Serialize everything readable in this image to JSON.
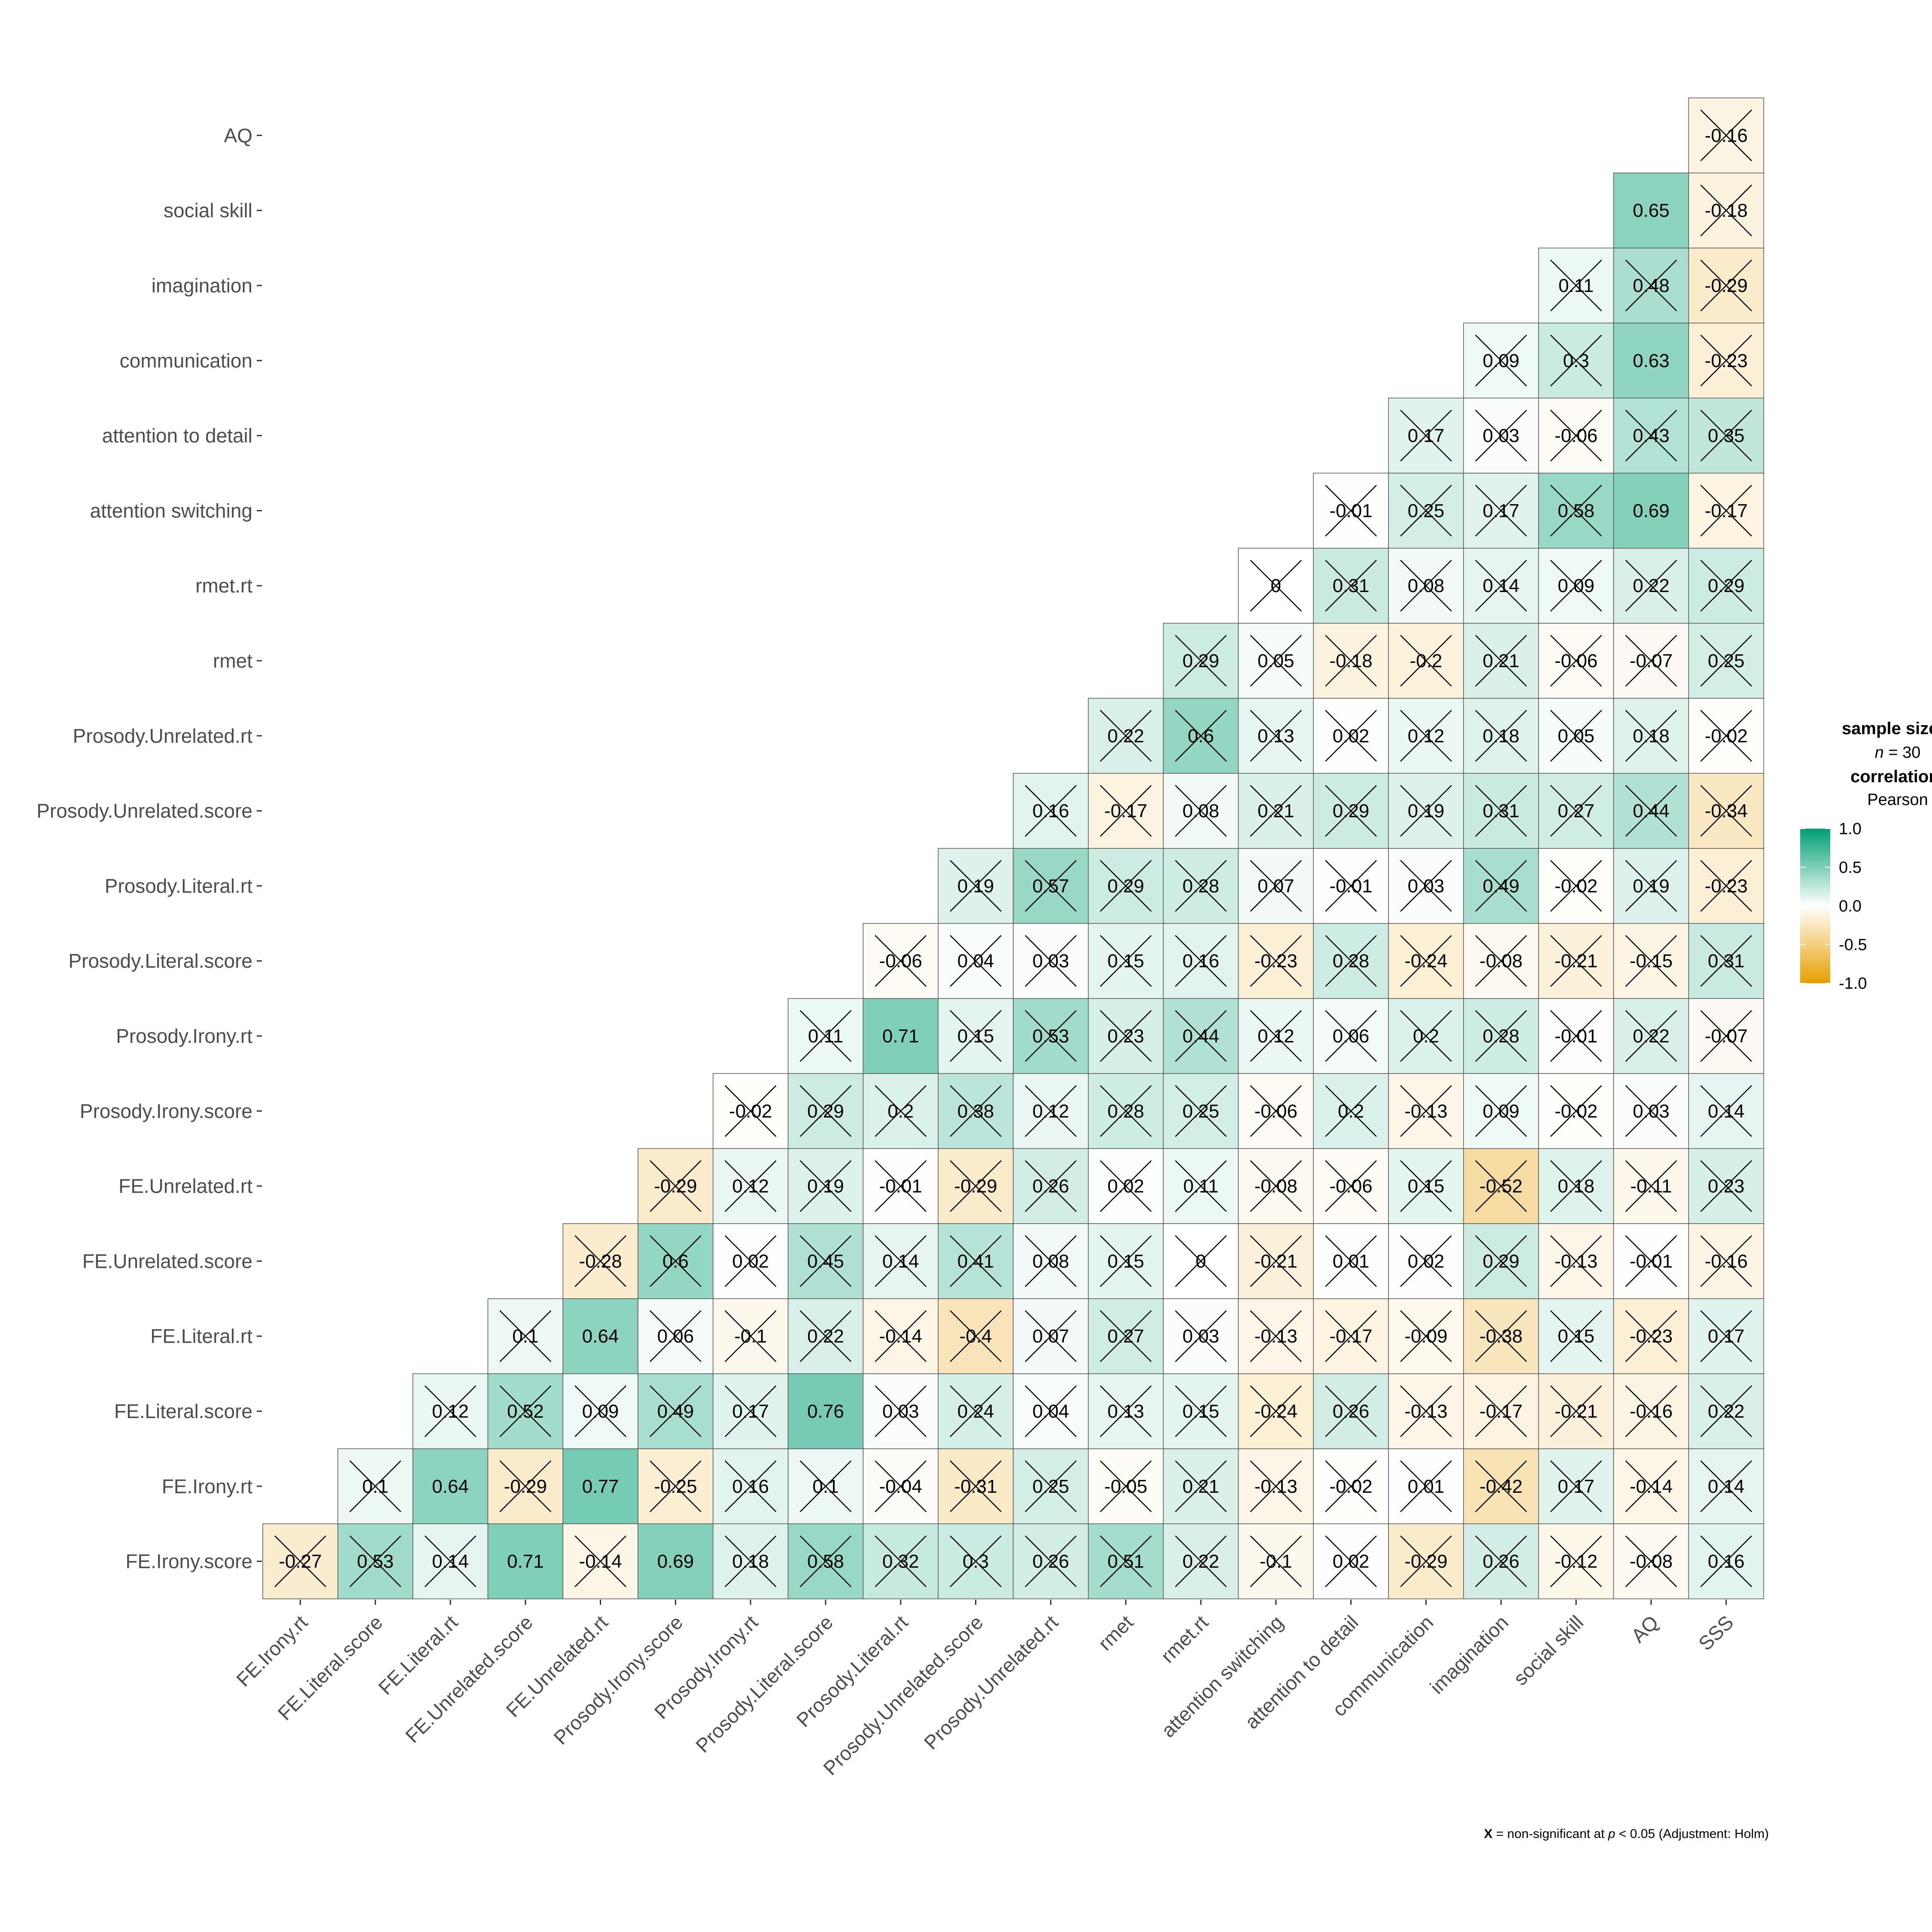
{
  "chart_data": {
    "type": "heatmap",
    "subtype": "correlation-matrix-lower-triangle",
    "variables": [
      "FE.Irony.score",
      "FE.Irony.rt",
      "FE.Literal.score",
      "FE.Literal.rt",
      "FE.Unrelated.score",
      "FE.Unrelated.rt",
      "Prosody.Irony.score",
      "Prosody.Irony.rt",
      "Prosody.Literal.score",
      "Prosody.Literal.rt",
      "Prosody.Unrelated.score",
      "Prosody.Unrelated.rt",
      "rmet",
      "rmet.rt",
      "attention switching",
      "attention to detail",
      "communication",
      "imagination",
      "social skill",
      "AQ",
      "SSS"
    ],
    "y_labels": [
      "FE.Irony.score",
      "FE.Irony.rt",
      "FE.Literal.score",
      "FE.Literal.rt",
      "FE.Unrelated.score",
      "FE.Unrelated.rt",
      "Prosody.Irony.score",
      "Prosody.Irony.rt",
      "Prosody.Literal.score",
      "Prosody.Literal.rt",
      "Prosody.Unrelated.score",
      "Prosody.Unrelated.rt",
      "rmet",
      "rmet.rt",
      "attention switching",
      "attention to detail",
      "communication",
      "imagination",
      "social skill",
      "AQ"
    ],
    "x_labels": [
      "FE.Irony.rt",
      "FE.Literal.score",
      "FE.Literal.rt",
      "FE.Unrelated.score",
      "FE.Unrelated.rt",
      "Prosody.Irony.score",
      "Prosody.Irony.rt",
      "Prosody.Literal.score",
      "Prosody.Literal.rt",
      "Prosody.Unrelated.score",
      "Prosody.Unrelated.rt",
      "rmet",
      "rmet.rt",
      "attention switching",
      "attention to detail",
      "communication",
      "imagination",
      "social skill",
      "AQ",
      "SSS"
    ],
    "correlations": [
      [
        -0.27,
        0.53,
        0.14,
        0.71,
        -0.14,
        0.69,
        0.18,
        0.58,
        0.32,
        0.3,
        0.26,
        0.51,
        0.22,
        -0.1,
        0.02,
        -0.29,
        0.26,
        -0.12,
        -0.08,
        0.16
      ],
      [
        0.1,
        0.64,
        -0.29,
        0.77,
        -0.25,
        0.16,
        0.1,
        -0.04,
        -0.31,
        0.25,
        -0.05,
        0.21,
        -0.13,
        -0.02,
        0.01,
        -0.42,
        0.17,
        -0.14,
        0.14
      ],
      [
        0.12,
        0.52,
        0.09,
        0.49,
        0.17,
        0.76,
        0.03,
        0.24,
        0.04,
        0.13,
        0.15,
        -0.24,
        0.26,
        -0.13,
        -0.17,
        -0.21,
        -0.16,
        0.22
      ],
      [
        0.1,
        0.64,
        0.06,
        -0.1,
        0.22,
        -0.14,
        -0.4,
        0.07,
        0.27,
        0.03,
        -0.13,
        -0.17,
        -0.09,
        -0.38,
        0.15,
        -0.23,
        0.17
      ],
      [
        -0.28,
        0.6,
        0.02,
        0.45,
        0.14,
        0.41,
        0.08,
        0.15,
        0,
        -0.21,
        0.01,
        0.02,
        0.29,
        -0.13,
        -0.01,
        -0.16
      ],
      [
        -0.29,
        0.12,
        0.19,
        -0.01,
        -0.29,
        0.26,
        0.02,
        0.11,
        -0.08,
        -0.06,
        0.15,
        -0.52,
        0.18,
        -0.11,
        0.23
      ],
      [
        -0.02,
        0.29,
        0.2,
        0.38,
        0.12,
        0.28,
        0.25,
        -0.06,
        0.2,
        -0.13,
        0.09,
        -0.02,
        0.03,
        0.14
      ],
      [
        0.11,
        0.71,
        0.15,
        0.53,
        0.23,
        0.44,
        0.12,
        0.06,
        0.2,
        0.28,
        -0.01,
        0.22,
        -0.07
      ],
      [
        -0.06,
        0.04,
        0.03,
        0.15,
        0.16,
        -0.23,
        0.28,
        -0.24,
        -0.08,
        -0.21,
        -0.15,
        0.31
      ],
      [
        0.19,
        0.57,
        0.29,
        0.28,
        0.07,
        -0.01,
        0.03,
        0.49,
        -0.02,
        0.19,
        -0.23
      ],
      [
        0.16,
        -0.17,
        0.08,
        0.21,
        0.29,
        0.19,
        0.31,
        0.27,
        0.44,
        -0.34
      ],
      [
        0.22,
        0.6,
        0.13,
        0.02,
        0.12,
        0.18,
        0.05,
        0.18,
        -0.02
      ],
      [
        0.29,
        0.05,
        -0.18,
        -0.2,
        0.21,
        -0.06,
        -0.07,
        0.25
      ],
      [
        0,
        0.31,
        0.08,
        0.14,
        0.09,
        0.22,
        0.29
      ],
      [
        -0.01,
        0.25,
        0.17,
        0.58,
        0.69,
        -0.17
      ],
      [
        0.17,
        0.03,
        -0.06,
        0.43,
        0.35
      ],
      [
        0.09,
        0.3,
        0.63,
        -0.23
      ],
      [
        0.11,
        0.48,
        -0.29
      ],
      [
        0.65,
        -0.18
      ],
      [
        -0.16
      ]
    ],
    "significant": [
      [
        false,
        false,
        false,
        true,
        false,
        true,
        false,
        false,
        false,
        false,
        false,
        false,
        false,
        false,
        false,
        false,
        false,
        false,
        false,
        false
      ],
      [
        false,
        true,
        false,
        true,
        false,
        false,
        false,
        false,
        false,
        false,
        false,
        false,
        false,
        false,
        false,
        false,
        false,
        false,
        false
      ],
      [
        false,
        false,
        false,
        false,
        false,
        true,
        false,
        false,
        false,
        false,
        false,
        false,
        false,
        false,
        false,
        false,
        false,
        false
      ],
      [
        false,
        true,
        false,
        false,
        false,
        false,
        false,
        false,
        false,
        false,
        false,
        false,
        false,
        false,
        false,
        false,
        false
      ],
      [
        false,
        false,
        false,
        false,
        false,
        false,
        false,
        false,
        false,
        false,
        false,
        false,
        false,
        false,
        false,
        false
      ],
      [
        false,
        false,
        false,
        false,
        false,
        false,
        false,
        false,
        false,
        false,
        false,
        false,
        false,
        false,
        false
      ],
      [
        false,
        false,
        false,
        false,
        false,
        false,
        false,
        false,
        false,
        false,
        false,
        false,
        false,
        false
      ],
      [
        false,
        true,
        false,
        false,
        false,
        false,
        false,
        false,
        false,
        false,
        false,
        false,
        false
      ],
      [
        false,
        false,
        false,
        false,
        false,
        false,
        false,
        false,
        false,
        false,
        false,
        false
      ],
      [
        false,
        false,
        false,
        false,
        false,
        false,
        false,
        false,
        false,
        false,
        false
      ],
      [
        false,
        false,
        false,
        false,
        false,
        false,
        false,
        false,
        false,
        false
      ],
      [
        false,
        false,
        false,
        false,
        false,
        false,
        false,
        false,
        false
      ],
      [
        false,
        false,
        false,
        false,
        false,
        false,
        false,
        false
      ],
      [
        false,
        false,
        false,
        false,
        false,
        false,
        false
      ],
      [
        false,
        false,
        false,
        false,
        true,
        false
      ],
      [
        false,
        false,
        false,
        false,
        false
      ],
      [
        false,
        false,
        true,
        false
      ],
      [
        false,
        false,
        false
      ],
      [
        true,
        false
      ],
      [
        false
      ]
    ],
    "color_scale": {
      "low": "#E69F00",
      "mid": "#FFFFFF",
      "high": "#009E73",
      "limits": [
        -1.0,
        1.0
      ],
      "breaks": [
        "1.0",
        "0.5",
        "0.0",
        "-0.5",
        "-1.0"
      ]
    },
    "legend": {
      "position": "right",
      "sample_title": "sample sizes:",
      "n_label": "n",
      "n_equals": " =  30",
      "corr_title": "correlation:",
      "corr_method": "Pearson"
    },
    "caption": {
      "x_mark": "X",
      "text_a": " = non-significant at ",
      "p_label": "p",
      "text_b": " < 0.05 (Adjustment: Holm)"
    }
  }
}
